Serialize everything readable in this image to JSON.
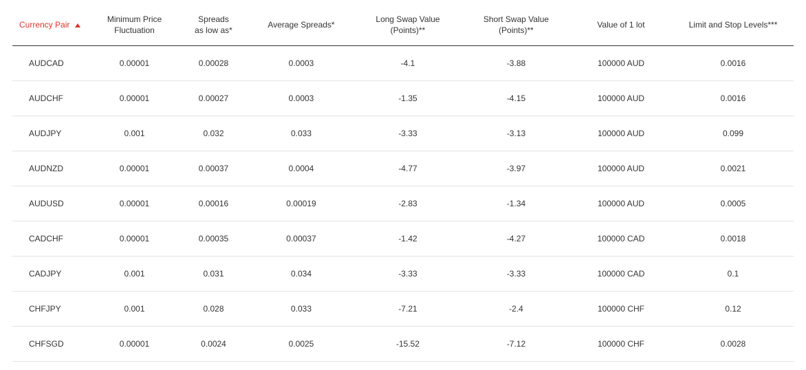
{
  "table": {
    "columns": [
      {
        "key": "pair",
        "label": "Currency Pair",
        "sorted": true,
        "direction": "asc"
      },
      {
        "key": "min_fluct",
        "label": "Minimum Price\nFluctuation",
        "sorted": false
      },
      {
        "key": "spread_low",
        "label": "Spreads\nas low as*",
        "sorted": false
      },
      {
        "key": "avg_spread",
        "label": "Average Spreads*",
        "sorted": false
      },
      {
        "key": "long_swap",
        "label": "Long Swap Value\n(Points)**",
        "sorted": false
      },
      {
        "key": "short_swap",
        "label": "Short Swap Value\n(Points)**",
        "sorted": false
      },
      {
        "key": "lot_value",
        "label": "Value of 1 lot",
        "sorted": false
      },
      {
        "key": "limit_stop",
        "label": "Limit and Stop Levels***",
        "sorted": false
      }
    ],
    "rows": [
      {
        "pair": "AUDCAD",
        "min_fluct": "0.00001",
        "spread_low": "0.00028",
        "avg_spread": "0.0003",
        "long_swap": "-4.1",
        "short_swap": "-3.88",
        "lot_value": "100000 AUD",
        "limit_stop": "0.0016"
      },
      {
        "pair": "AUDCHF",
        "min_fluct": "0.00001",
        "spread_low": "0.00027",
        "avg_spread": "0.0003",
        "long_swap": "-1.35",
        "short_swap": "-4.15",
        "lot_value": "100000 AUD",
        "limit_stop": "0.0016"
      },
      {
        "pair": "AUDJPY",
        "min_fluct": "0.001",
        "spread_low": "0.032",
        "avg_spread": "0.033",
        "long_swap": "-3.33",
        "short_swap": "-3.13",
        "lot_value": "100000 AUD",
        "limit_stop": "0.099"
      },
      {
        "pair": "AUDNZD",
        "min_fluct": "0.00001",
        "spread_low": "0.00037",
        "avg_spread": "0.0004",
        "long_swap": "-4.77",
        "short_swap": "-3.97",
        "lot_value": "100000 AUD",
        "limit_stop": "0.0021"
      },
      {
        "pair": "AUDUSD",
        "min_fluct": "0.00001",
        "spread_low": "0.00016",
        "avg_spread": "0.00019",
        "long_swap": "-2.83",
        "short_swap": "-1.34",
        "lot_value": "100000 AUD",
        "limit_stop": "0.0005"
      },
      {
        "pair": "CADCHF",
        "min_fluct": "0.00001",
        "spread_low": "0.00035",
        "avg_spread": "0.00037",
        "long_swap": "-1.42",
        "short_swap": "-4.27",
        "lot_value": "100000 CAD",
        "limit_stop": "0.0018"
      },
      {
        "pair": "CADJPY",
        "min_fluct": "0.001",
        "spread_low": "0.031",
        "avg_spread": "0.034",
        "long_swap": "-3.33",
        "short_swap": "-3.33",
        "lot_value": "100000 CAD",
        "limit_stop": "0.1"
      },
      {
        "pair": "CHFJPY",
        "min_fluct": "0.001",
        "spread_low": "0.028",
        "avg_spread": "0.033",
        "long_swap": "-7.21",
        "short_swap": "-2.4",
        "lot_value": "100000 CHF",
        "limit_stop": "0.12"
      },
      {
        "pair": "CHFSGD",
        "min_fluct": "0.00001",
        "spread_low": "0.0024",
        "avg_spread": "0.0025",
        "long_swap": "-15.52",
        "short_swap": "-7.12",
        "lot_value": "100000 CHF",
        "limit_stop": "0.0028"
      }
    ]
  },
  "colors": {
    "accent": "#d9342b",
    "text": "#333333",
    "header_border": "#333333",
    "row_border": "#e2e2e2",
    "background": "#ffffff"
  }
}
